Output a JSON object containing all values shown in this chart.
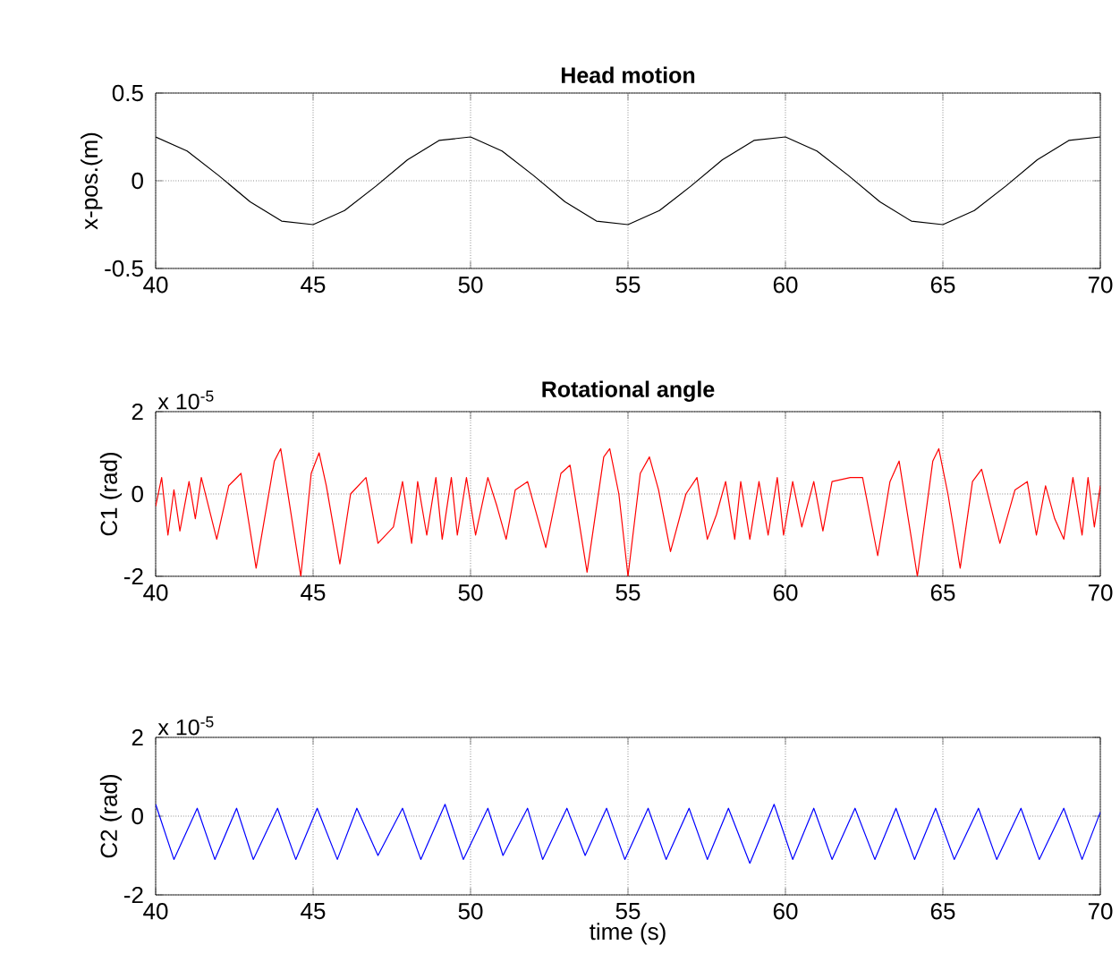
{
  "chart_data": [
    {
      "type": "line",
      "title": "Head motion",
      "ylabel": "x-pos.(m)",
      "xlim": [
        40,
        70
      ],
      "ylim": [
        -0.5,
        0.5
      ],
      "xticks": [
        40,
        45,
        50,
        55,
        60,
        65,
        70
      ],
      "yticks": [
        -0.5,
        0,
        0.5
      ],
      "grid": true,
      "marker": "none",
      "line_style": "solid",
      "series": [
        {
          "color": "#000000",
          "x": [
            40,
            41,
            42,
            43,
            44,
            45,
            46,
            47,
            48,
            49,
            50,
            51,
            52,
            53,
            54,
            55,
            56,
            57,
            58,
            59,
            60,
            61,
            62,
            63,
            64,
            65,
            66,
            67,
            68,
            69,
            70
          ],
          "values": [
            0.25,
            0.17,
            0.03,
            -0.12,
            -0.23,
            -0.25,
            -0.17,
            -0.03,
            0.12,
            0.23,
            0.25,
            0.17,
            0.03,
            -0.12,
            -0.23,
            -0.25,
            -0.17,
            -0.03,
            0.12,
            0.23,
            0.25,
            0.17,
            0.03,
            -0.12,
            -0.23,
            -0.25,
            -0.17,
            -0.03,
            0.12,
            0.23,
            0.25
          ]
        }
      ]
    },
    {
      "type": "line",
      "title": "Rotational angle",
      "ylabel": "C1 (rad)",
      "annotations": [
        "x 10$^{-5}$"
      ],
      "xlim": [
        40,
        70
      ],
      "ylim": [
        -2,
        2
      ],
      "xticks": [
        40,
        45,
        50,
        55,
        60,
        65,
        70
      ],
      "yticks": [
        -2,
        0,
        2
      ],
      "grid": true,
      "marker": "none",
      "line_style": "solid",
      "series": [
        {
          "color": "#ff0000",
          "x": [
            40.0,
            40.19,
            40.39,
            40.58,
            40.77,
            41.06,
            41.26,
            41.45,
            41.94,
            42.32,
            42.71,
            43.19,
            43.77,
            43.97,
            44.16,
            44.61,
            44.94,
            45.19,
            45.42,
            45.85,
            46.19,
            46.68,
            47.06,
            47.55,
            47.84,
            48.13,
            48.32,
            48.61,
            48.9,
            49.1,
            49.39,
            49.58,
            49.87,
            50.16,
            50.55,
            50.84,
            51.13,
            51.42,
            51.81,
            52.39,
            52.87,
            53.16,
            53.7,
            54.23,
            54.42,
            54.71,
            55.0,
            55.39,
            55.68,
            55.97,
            56.35,
            56.84,
            57.19,
            57.52,
            57.81,
            58.1,
            58.39,
            58.58,
            58.87,
            59.16,
            59.45,
            59.74,
            59.94,
            60.23,
            60.52,
            60.9,
            61.19,
            61.48,
            62.06,
            62.45,
            62.93,
            63.32,
            63.61,
            64.19,
            64.68,
            64.87,
            65.16,
            65.55,
            65.94,
            66.23,
            66.81,
            67.29,
            67.68,
            67.97,
            68.26,
            68.55,
            68.84,
            69.13,
            69.42,
            69.61,
            69.81,
            70.0
          ],
          "values": [
            -0.3,
            0.4,
            -1.0,
            0.1,
            -0.9,
            0.3,
            -0.6,
            0.4,
            -1.1,
            0.2,
            0.5,
            -1.8,
            0.8,
            1.1,
            0.2,
            -2.0,
            0.5,
            1.0,
            0.2,
            -1.7,
            0.0,
            0.4,
            -1.2,
            -0.8,
            0.3,
            -1.2,
            0.3,
            -1.0,
            0.4,
            -1.1,
            0.4,
            -1.0,
            0.4,
            -1.0,
            0.4,
            -0.3,
            -1.1,
            0.1,
            0.3,
            -1.3,
            0.5,
            0.7,
            -1.9,
            0.9,
            1.1,
            0.0,
            -2.0,
            0.5,
            0.9,
            0.1,
            -1.4,
            0.0,
            0.4,
            -1.1,
            -0.5,
            0.3,
            -1.1,
            0.3,
            -1.1,
            0.3,
            -1.0,
            0.4,
            -1.0,
            0.3,
            -0.8,
            0.3,
            -0.9,
            0.3,
            0.4,
            0.4,
            -1.5,
            0.3,
            0.8,
            -2.0,
            0.8,
            1.1,
            0.0,
            -1.8,
            0.3,
            0.6,
            -1.2,
            0.1,
            0.3,
            -1.0,
            0.2,
            -0.6,
            -1.1,
            0.4,
            -1.0,
            0.4,
            -0.8,
            0.2
          ]
        }
      ]
    },
    {
      "type": "line",
      "ylabel": "C2 (rad)",
      "xlabel": "time (s)",
      "annotations": [
        "x 10$^{-5}$"
      ],
      "xlim": [
        40,
        70
      ],
      "ylim": [
        -2,
        2
      ],
      "xticks": [
        40,
        45,
        50,
        55,
        60,
        65,
        70
      ],
      "yticks": [
        -2,
        0,
        2
      ],
      "grid": true,
      "marker": "none",
      "line_style": "solid",
      "series": [
        {
          "color": "#0000ff",
          "x": [
            40.0,
            40.58,
            41.32,
            41.88,
            42.57,
            43.1,
            43.87,
            44.45,
            45.13,
            45.77,
            46.39,
            47.06,
            47.84,
            48.42,
            49.19,
            49.77,
            50.55,
            51.03,
            51.81,
            52.29,
            53.06,
            53.64,
            54.32,
            54.9,
            55.64,
            56.21,
            56.94,
            57.52,
            58.19,
            58.87,
            59.64,
            60.23,
            60.9,
            61.48,
            62.21,
            62.84,
            63.51,
            64.1,
            64.77,
            65.36,
            66.13,
            66.71,
            67.48,
            68.06,
            68.84,
            69.42,
            70.0
          ],
          "values": [
            0.3,
            -1.1,
            0.2,
            -1.1,
            0.2,
            -1.1,
            0.2,
            -1.1,
            0.2,
            -1.1,
            0.2,
            -1.0,
            0.2,
            -1.1,
            0.3,
            -1.1,
            0.2,
            -1.0,
            0.2,
            -1.1,
            0.2,
            -1.0,
            0.2,
            -1.1,
            0.2,
            -1.1,
            0.2,
            -1.1,
            0.2,
            -1.2,
            0.3,
            -1.1,
            0.2,
            -1.1,
            0.2,
            -1.1,
            0.2,
            -1.1,
            0.2,
            -1.1,
            0.2,
            -1.1,
            0.2,
            -1.1,
            0.2,
            -1.1,
            0.1
          ]
        }
      ]
    }
  ]
}
